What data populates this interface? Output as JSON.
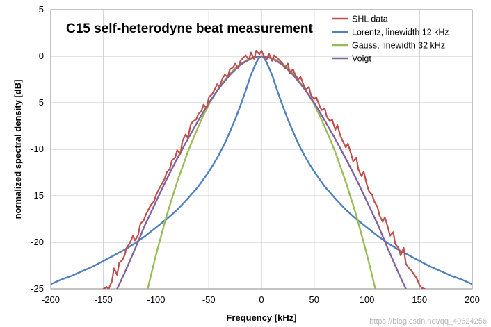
{
  "chart_data": {
    "type": "line",
    "title": "C15 self-heterodyne beat measurement",
    "xlabel": "Frequency [kHz]",
    "ylabel": "normalized spectral density [dB]",
    "xlim": [
      -200,
      200
    ],
    "ylim": [
      -25,
      5
    ],
    "x_ticks": [
      -200,
      -150,
      -100,
      -50,
      0,
      50,
      100,
      150,
      200
    ],
    "y_ticks": [
      5,
      0,
      -5,
      -10,
      -15,
      -20,
      -25
    ],
    "x_tick_labels": [
      "-200",
      "-150",
      "-100",
      "-50",
      "0",
      "50",
      "100",
      "150",
      "200"
    ],
    "y_tick_labels": [
      "5",
      "0",
      "-5",
      "-10",
      "-15",
      "-20",
      "-25"
    ],
    "grid": true,
    "legend_position": "top-right",
    "series": [
      {
        "name": "SHL data",
        "color": "#c0504d",
        "x": [
          -150,
          -147,
          -145,
          -142,
          -140,
          -137,
          -135,
          -132,
          -130,
          -128,
          -125,
          -122,
          -120,
          -117,
          -115,
          -112,
          -110,
          -107,
          -105,
          -102,
          -100,
          -97,
          -95,
          -92,
          -90,
          -87,
          -85,
          -82,
          -80,
          -77,
          -75,
          -72,
          -70,
          -67,
          -65,
          -62,
          -60,
          -57,
          -55,
          -52,
          -50,
          -47,
          -45,
          -42,
          -40,
          -37,
          -35,
          -32,
          -30,
          -27,
          -25,
          -22,
          -20,
          -17,
          -15,
          -12,
          -10,
          -7,
          -5,
          -2,
          0,
          2,
          5,
          7,
          10,
          12,
          15,
          17,
          20,
          22,
          25,
          27,
          30,
          32,
          35,
          37,
          40,
          42,
          45,
          47,
          50,
          52,
          55,
          57,
          60,
          62,
          65,
          67,
          70,
          72,
          75,
          77,
          80,
          82,
          85,
          87,
          90,
          92,
          95,
          97,
          100,
          102,
          105,
          107,
          110,
          112,
          115,
          117,
          120,
          122,
          125,
          127,
          130,
          132,
          135,
          137,
          140,
          142,
          145,
          147,
          150,
          152,
          155
        ],
        "y": [
          -25.0,
          -24.8,
          -25.0,
          -24.2,
          -22.8,
          -23.5,
          -22.2,
          -21.9,
          -21.4,
          -20.6,
          -20.1,
          -19.3,
          -19.8,
          -19.2,
          -18.0,
          -17.7,
          -17.1,
          -16.4,
          -16.0,
          -15.6,
          -14.9,
          -14.2,
          -13.8,
          -13.2,
          -12.5,
          -12.1,
          -11.2,
          -10.9,
          -10.1,
          -10.5,
          -9.1,
          -8.4,
          -8.8,
          -7.3,
          -7.0,
          -6.8,
          -6.2,
          -5.9,
          -5.2,
          -5.6,
          -4.4,
          -4.1,
          -3.7,
          -3.0,
          -3.3,
          -2.4,
          -2.0,
          -2.2,
          -1.4,
          -1.2,
          -0.8,
          -1.3,
          -0.5,
          -0.1,
          0.1,
          -0.4,
          0.4,
          -0.3,
          0.6,
          0.2,
          0.6,
          0.1,
          -0.3,
          0.3,
          -0.5,
          0.1,
          -0.2,
          -0.4,
          -0.8,
          -1.3,
          -0.8,
          -1.8,
          -1.4,
          -2.0,
          -2.5,
          -2.2,
          -3.1,
          -3.6,
          -3.3,
          -4.2,
          -4.6,
          -4.4,
          -5.3,
          -5.8,
          -5.6,
          -6.5,
          -7.0,
          -6.8,
          -7.9,
          -7.4,
          -8.6,
          -9.1,
          -9.8,
          -9.4,
          -10.5,
          -11.3,
          -10.9,
          -12.2,
          -12.9,
          -12.4,
          -13.8,
          -14.5,
          -14.9,
          -15.6,
          -16.2,
          -17.1,
          -17.8,
          -17.3,
          -18.4,
          -19.3,
          -18.9,
          -20.2,
          -20.6,
          -21.4,
          -20.6,
          -22.3,
          -22.8,
          -23.0,
          -23.5,
          -23.8,
          -24.6,
          -24.9,
          -25.0
        ]
      },
      {
        "name": "Lorentz, linewidth 12 kHz",
        "color": "#4f81bd",
        "x": [
          -200,
          -190,
          -180,
          -170,
          -160,
          -150,
          -140,
          -130,
          -120,
          -110,
          -100,
          -90,
          -80,
          -70,
          -60,
          -50,
          -45,
          -40,
          -35,
          -30,
          -25,
          -20,
          -15,
          -10,
          -7,
          -5,
          -3,
          -2,
          -1,
          0,
          1,
          2,
          3,
          5,
          7,
          10,
          15,
          20,
          25,
          30,
          35,
          40,
          45,
          50,
          60,
          70,
          80,
          90,
          100,
          110,
          120,
          130,
          140,
          150,
          160,
          170,
          180,
          190,
          200
        ],
        "y": [
          -24.5,
          -24.0,
          -23.6,
          -23.1,
          -22.6,
          -22.0,
          -21.4,
          -20.8,
          -20.1,
          -19.3,
          -18.4,
          -17.5,
          -16.5,
          -15.3,
          -14.0,
          -12.4,
          -11.5,
          -10.5,
          -9.4,
          -8.1,
          -6.8,
          -5.3,
          -3.7,
          -2.0,
          -1.2,
          -0.7,
          -0.3,
          -0.15,
          -0.05,
          0.0,
          -0.05,
          -0.15,
          -0.3,
          -0.7,
          -1.2,
          -2.0,
          -3.7,
          -5.3,
          -6.8,
          -8.1,
          -9.4,
          -10.5,
          -11.5,
          -12.4,
          -14.0,
          -15.3,
          -16.5,
          -17.5,
          -18.4,
          -19.3,
          -20.1,
          -20.8,
          -21.4,
          -22.0,
          -22.6,
          -23.1,
          -23.6,
          -24.0,
          -24.5
        ]
      },
      {
        "name": "Gauss, linewidth 32 kHz",
        "color": "#9bbb59",
        "x": [
          -108,
          -105,
          -100,
          -95,
          -90,
          -85,
          -80,
          -75,
          -70,
          -65,
          -60,
          -55,
          -50,
          -45,
          -40,
          -35,
          -30,
          -25,
          -20,
          -15,
          -10,
          -5,
          0,
          5,
          10,
          15,
          20,
          25,
          30,
          35,
          40,
          45,
          50,
          55,
          60,
          65,
          70,
          75,
          80,
          85,
          90,
          95,
          100,
          105,
          108
        ],
        "y": [
          -25.0,
          -23.6,
          -21.3,
          -19.2,
          -17.1,
          -15.3,
          -13.5,
          -11.9,
          -10.3,
          -8.9,
          -7.6,
          -6.3,
          -5.2,
          -4.2,
          -3.3,
          -2.6,
          -1.9,
          -1.3,
          -0.8,
          -0.5,
          -0.2,
          -0.05,
          0.0,
          -0.05,
          -0.2,
          -0.5,
          -0.8,
          -1.3,
          -1.9,
          -2.6,
          -3.3,
          -4.2,
          -5.2,
          -6.3,
          -7.6,
          -8.9,
          -10.3,
          -11.9,
          -13.5,
          -15.3,
          -17.1,
          -19.2,
          -21.3,
          -23.6,
          -25.0
        ]
      },
      {
        "name": "Voigt",
        "color": "#8064a2",
        "x": [
          -137,
          -130,
          -120,
          -110,
          -100,
          -90,
          -80,
          -70,
          -60,
          -50,
          -40,
          -30,
          -20,
          -10,
          -5,
          0,
          5,
          10,
          20,
          30,
          40,
          50,
          60,
          70,
          80,
          90,
          100,
          110,
          120,
          130,
          137
        ],
        "y": [
          -25.0,
          -23.3,
          -20.7,
          -18.0,
          -15.6,
          -13.2,
          -11.0,
          -8.9,
          -6.9,
          -5.0,
          -3.4,
          -2.0,
          -0.9,
          -0.25,
          -0.06,
          0.0,
          -0.06,
          -0.25,
          -0.9,
          -2.0,
          -3.4,
          -5.0,
          -6.9,
          -8.9,
          -11.0,
          -13.2,
          -15.6,
          -18.0,
          -20.7,
          -23.3,
          -25.0
        ]
      }
    ]
  },
  "watermark": "https://blog.csdn.net/qq_40624256"
}
